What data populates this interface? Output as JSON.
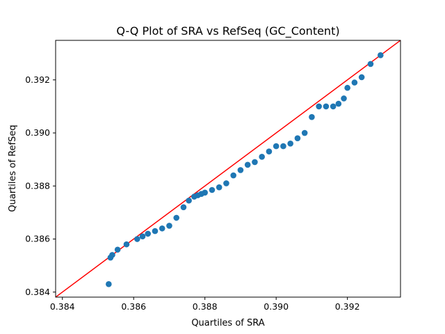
{
  "chart_data": {
    "type": "scatter",
    "title": "Q-Q Plot of SRA vs RefSeq (GC_Content)",
    "xlabel": "Quartiles of SRA",
    "ylabel": "Quartiles of RefSeq",
    "xlim": [
      0.38381,
      0.39349
    ],
    "ylim": [
      0.38381,
      0.39349
    ],
    "xticks": [
      0.384,
      0.386,
      0.388,
      0.39,
      0.392
    ],
    "yticks": [
      0.384,
      0.386,
      0.388,
      0.39,
      0.392
    ],
    "xtick_labels": [
      "0.384",
      "0.386",
      "0.388",
      "0.390",
      "0.392"
    ],
    "ytick_labels": [
      "0.384",
      "0.386",
      "0.388",
      "0.390",
      "0.392"
    ],
    "grid": false,
    "colors": {
      "points": "#1f77b4",
      "reference_line": "#ff0000"
    },
    "reference_line": {
      "x": [
        0.38381,
        0.39349
      ],
      "y": [
        0.38381,
        0.39349
      ]
    },
    "points": {
      "x": [
        0.3853,
        0.38535,
        0.3854,
        0.38555,
        0.3858,
        0.3861,
        0.38625,
        0.3864,
        0.3866,
        0.3868,
        0.387,
        0.3872,
        0.3874,
        0.38755,
        0.3877,
        0.3878,
        0.3879,
        0.388,
        0.3882,
        0.3884,
        0.3886,
        0.3888,
        0.389,
        0.3892,
        0.3894,
        0.3896,
        0.3898,
        0.39,
        0.3902,
        0.3904,
        0.3906,
        0.3908,
        0.391,
        0.3912,
        0.3914,
        0.3916,
        0.39175,
        0.3919,
        0.392,
        0.3922,
        0.3924,
        0.39265,
        0.39293
      ],
      "y": [
        0.3843,
        0.3853,
        0.3854,
        0.3856,
        0.3858,
        0.386,
        0.3861,
        0.3862,
        0.3863,
        0.3864,
        0.3865,
        0.3868,
        0.3872,
        0.38745,
        0.3876,
        0.38765,
        0.3877,
        0.38775,
        0.38785,
        0.38795,
        0.3881,
        0.3884,
        0.3886,
        0.3888,
        0.3889,
        0.3891,
        0.3893,
        0.3895,
        0.3895,
        0.3896,
        0.3898,
        0.39,
        0.3906,
        0.391,
        0.391,
        0.391,
        0.3911,
        0.3913,
        0.3917,
        0.3919,
        0.3921,
        0.3926,
        0.39293
      ]
    }
  }
}
